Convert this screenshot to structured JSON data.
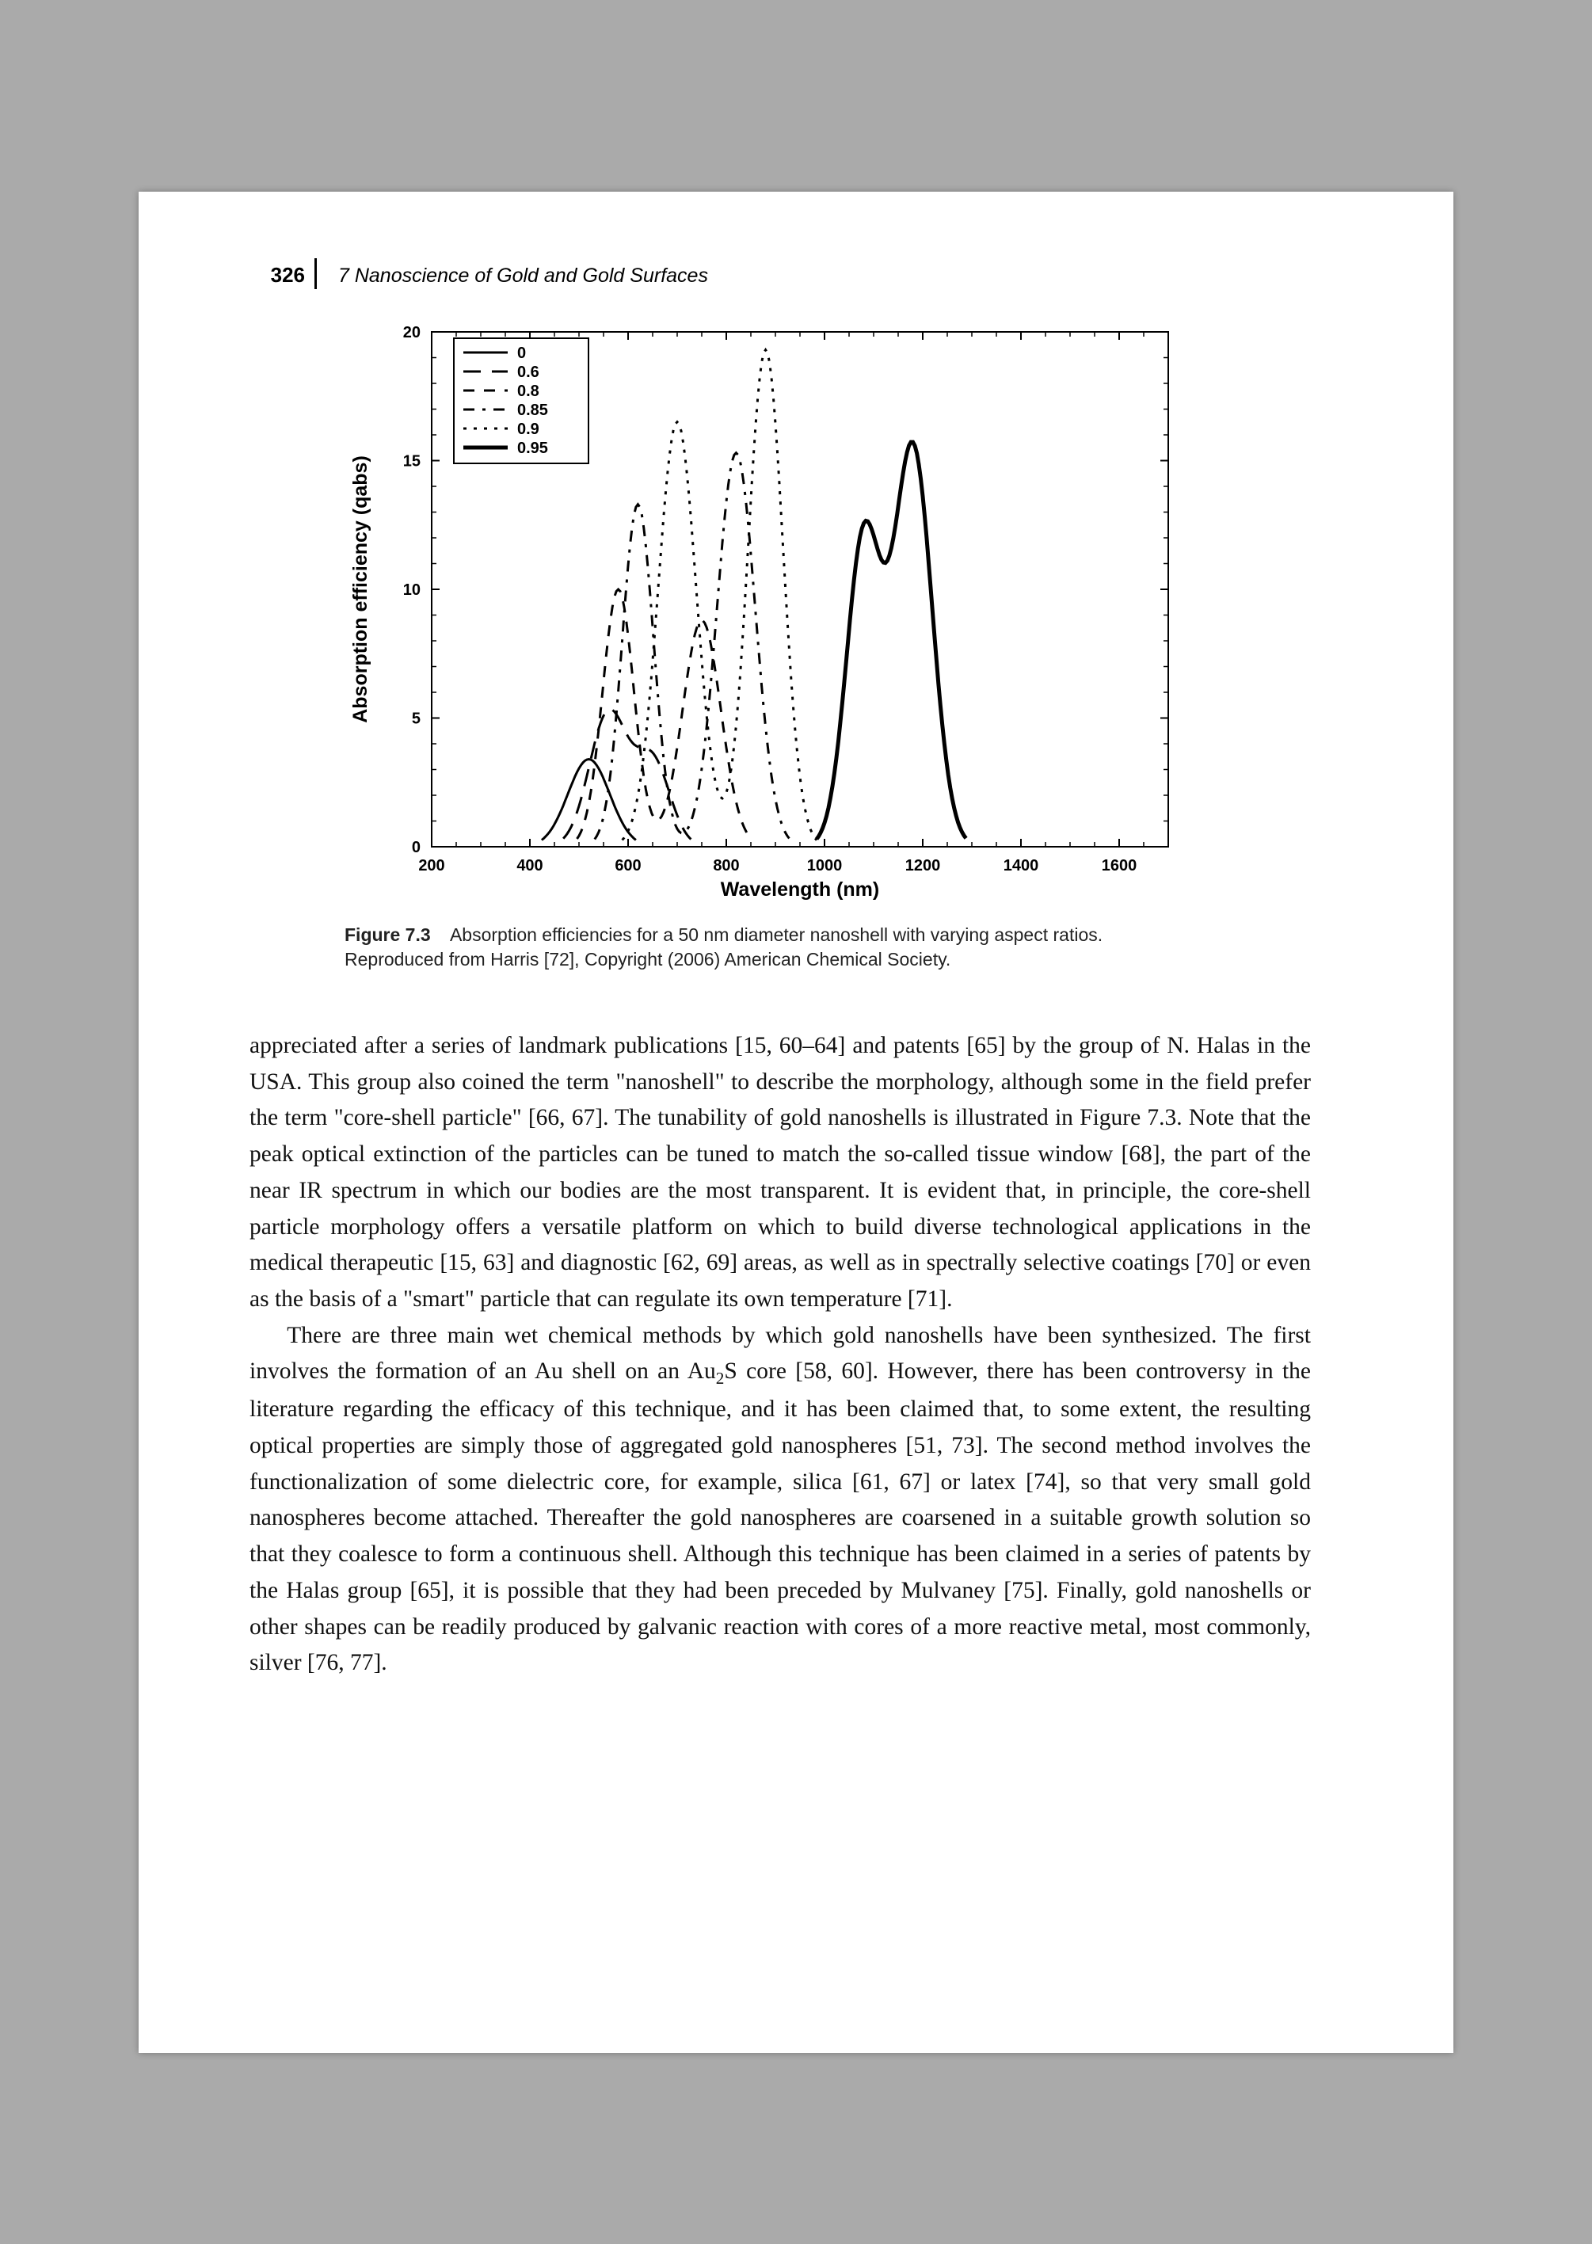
{
  "header": {
    "page_number": "326",
    "chapter_label": "7  Nanoscience of Gold and Gold Surfaces"
  },
  "chart": {
    "type": "line",
    "title": null,
    "xlabel": "Wavelength (nm)",
    "ylabel": "Absorption efficiency (qabs)",
    "label_fontsize": 22,
    "tick_fontsize": 20,
    "xlim": [
      200,
      1700
    ],
    "ylim": [
      0,
      20
    ],
    "xticks": [
      200,
      400,
      600,
      800,
      1000,
      1200,
      1400,
      1600
    ],
    "yticks": [
      0,
      5,
      10,
      15,
      20
    ],
    "grid": false,
    "minor_ticks_on_frame": true,
    "background_color": "#ffffff",
    "axis_color": "#000000",
    "frame_linewidth": 2,
    "legend": {
      "position": "upper-left",
      "frame": true,
      "items": [
        {
          "label": "0",
          "dash": "solid",
          "color": "#000000"
        },
        {
          "label": "0.6",
          "dash": "long-dash",
          "color": "#000000"
        },
        {
          "label": "0.8",
          "dash": "med-dash",
          "color": "#000000"
        },
        {
          "label": "0.85",
          "dash": "dash-dot",
          "color": "#000000"
        },
        {
          "label": "0.9",
          "dash": "dots",
          "color": "#000000"
        },
        {
          "label": "0.95",
          "dash": "thick-solid",
          "color": "#000000"
        }
      ]
    },
    "series": [
      {
        "name": "0",
        "color": "#000000",
        "dash": "solid",
        "lw": 3,
        "peaks": [
          {
            "x": 520,
            "y": 3.4,
            "w": 60
          }
        ]
      },
      {
        "name": "0.6",
        "color": "#000000",
        "dash": "long-dash",
        "lw": 3,
        "peaks": [
          {
            "x": 560,
            "y": 5.2,
            "w": 55
          },
          {
            "x": 650,
            "y": 3.3,
            "w": 50
          }
        ]
      },
      {
        "name": "0.8",
        "color": "#000000",
        "dash": "med-dash",
        "lw": 3,
        "peaks": [
          {
            "x": 580,
            "y": 10.0,
            "w": 45
          },
          {
            "x": 750,
            "y": 8.8,
            "w": 55
          }
        ]
      },
      {
        "name": "0.85",
        "color": "#000000",
        "dash": "dash-dot",
        "lw": 3,
        "peaks": [
          {
            "x": 620,
            "y": 13.3,
            "w": 45
          },
          {
            "x": 820,
            "y": 15.3,
            "w": 55
          }
        ]
      },
      {
        "name": "0.9",
        "color": "#000000",
        "dash": "dots",
        "lw": 3,
        "peaks": [
          {
            "x": 700,
            "y": 16.5,
            "w": 55
          },
          {
            "x": 880,
            "y": 19.3,
            "w": 50
          }
        ]
      },
      {
        "name": "0.95",
        "color": "#000000",
        "dash": "thick-solid",
        "lw": 5,
        "peaks": [
          {
            "x": 1080,
            "y": 12.0,
            "w": 50
          },
          {
            "x": 1180,
            "y": 15.5,
            "w": 55
          }
        ]
      }
    ]
  },
  "caption": {
    "label": "Figure 7.3",
    "text": "Absorption efficiencies for a 50 nm diameter nanoshell with varying aspect ratios. Reproduced from Harris [72], Copyright (2006) American Chemical Society."
  },
  "body": {
    "p1": "appreciated after a series of landmark publications [15, 60–64] and patents [65] by the group of N. Halas in the USA. This group also coined the term \"nanoshell\" to describe the morphology, although some in the field prefer the term \"core-shell particle\" [66, 67]. The tunability of gold nanoshells is illustrated in Figure 7.3. Note that the peak optical extinction of the particles can be tuned to match the so-called tissue window [68], the part of the near IR spectrum in which our bodies are the most transparent. It is evident that, in principle, the core-shell particle morphology offers a versatile platform on which to build diverse technological applications in the medical therapeutic [15, 63] and diagnostic [62, 69] areas, as well as in spectrally selective coatings [70] or even as the basis of a \"smart\" particle that can regulate its own temperature [71].",
    "p2_pre": "There are three main wet chemical methods by which gold nanoshells have been synthesized. The first involves the formation of an Au shell on an Au",
    "p2_sub": "2",
    "p2_post": "S core [58, 60]. However, there has been controversy in the literature regarding the efficacy of this technique, and it has been claimed that, to some extent, the resulting optical properties are simply those of aggregated gold nanospheres [51, 73]. The second method involves the functionalization of some dielectric core, for example, silica [61, 67] or latex [74], so that very small gold nanospheres become attached. Thereafter the gold nanospheres are coarsened in a suitable growth solution so that they coalesce to form a continuous shell. Although this technique has been claimed in a series of patents by the Halas group [65], it is possible that they had been preceded by Mulvaney [75]. Finally, gold nanoshells or other shapes can be readily produced by galvanic reaction with cores of a more reactive metal, most commonly, silver [76, 77]."
  }
}
